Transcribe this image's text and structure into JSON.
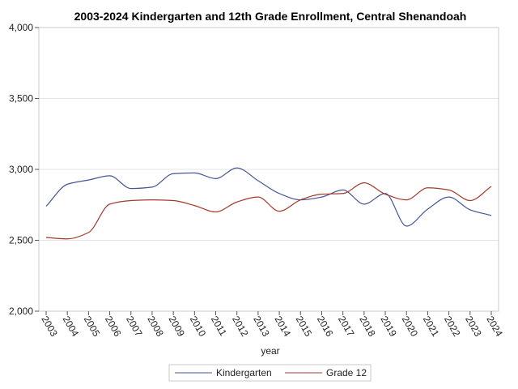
{
  "chart_data": {
    "type": "line",
    "title": "2003-2024 Kindergarten and 12th Grade Enrollment, Central Shenandoah",
    "xlabel": "year",
    "ylabel": "",
    "x": [
      "2003",
      "2004",
      "2005",
      "2006",
      "2007",
      "2008",
      "2009",
      "2010",
      "2011",
      "2012",
      "2013",
      "2014",
      "2015",
      "2016",
      "2017",
      "2018",
      "2019",
      "2020",
      "2021",
      "2022",
      "2023",
      "2024"
    ],
    "ylim": [
      2000,
      4000
    ],
    "yticks": [
      "2,000",
      "2,500",
      "3,000",
      "3,500",
      "4,000"
    ],
    "ytick_values": [
      2000,
      2500,
      3000,
      3500,
      4000
    ],
    "grid": true,
    "legend_position": "bottom",
    "series": [
      {
        "name": "Kindergarten",
        "color": "#445694",
        "values": [
          2740,
          2895,
          2925,
          2955,
          2865,
          2875,
          2970,
          2975,
          2935,
          3010,
          2920,
          2830,
          2785,
          2805,
          2855,
          2755,
          2830,
          2600,
          2720,
          2805,
          2715,
          2675
        ]
      },
      {
        "name": "Grade 12",
        "color": "#A23A2E",
        "values": [
          2520,
          2510,
          2555,
          2755,
          2780,
          2785,
          2780,
          2745,
          2700,
          2770,
          2805,
          2705,
          2785,
          2825,
          2830,
          2905,
          2825,
          2785,
          2870,
          2855,
          2780,
          2880
        ]
      }
    ]
  }
}
